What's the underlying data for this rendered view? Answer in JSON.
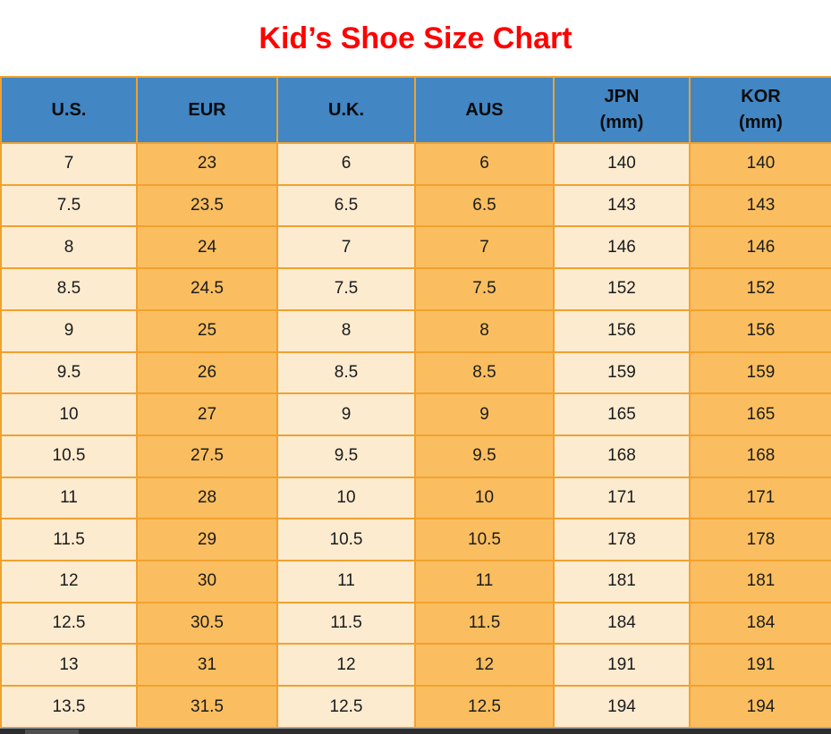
{
  "title": "Kid’s Shoe Size Chart",
  "colors": {
    "header_bg": "#4286C4",
    "column_light": "#FDEBD0",
    "column_orange": "#FABE60",
    "grid_border": "#F1A12F",
    "title_red": "#FE0000",
    "cell_text": "#1B1B1B",
    "bottom_bar": "#2D2D2D",
    "bottom_bar_thumb": "#4F4F4F"
  },
  "table": {
    "columns": [
      {
        "key": "us",
        "label": "U.S.",
        "sub": "",
        "bg": "light"
      },
      {
        "key": "eur",
        "label": "EUR",
        "sub": "",
        "bg": "orange"
      },
      {
        "key": "uk",
        "label": "U.K.",
        "sub": "",
        "bg": "light"
      },
      {
        "key": "aus",
        "label": "AUS",
        "sub": "",
        "bg": "orange"
      },
      {
        "key": "jpn",
        "label": "JPN",
        "sub": "(mm)",
        "bg": "light"
      },
      {
        "key": "kor",
        "label": "KOR",
        "sub": "(mm)",
        "bg": "orange"
      }
    ],
    "rows": [
      [
        "7",
        "23",
        "6",
        "6",
        "140",
        "140"
      ],
      [
        "7.5",
        "23.5",
        "6.5",
        "6.5",
        "143",
        "143"
      ],
      [
        "8",
        "24",
        "7",
        "7",
        "146",
        "146"
      ],
      [
        "8.5",
        "24.5",
        "7.5",
        "7.5",
        "152",
        "152"
      ],
      [
        "9",
        "25",
        "8",
        "8",
        "156",
        "156"
      ],
      [
        "9.5",
        "26",
        "8.5",
        "8.5",
        "159",
        "159"
      ],
      [
        "10",
        "27",
        "9",
        "9",
        "165",
        "165"
      ],
      [
        "10.5",
        "27.5",
        "9.5",
        "9.5",
        "168",
        "168"
      ],
      [
        "11",
        "28",
        "10",
        "10",
        "171",
        "171"
      ],
      [
        "11.5",
        "29",
        "10.5",
        "10.5",
        "178",
        "178"
      ],
      [
        "12",
        "30",
        "11",
        "11",
        "181",
        "181"
      ],
      [
        "12.5",
        "30.5",
        "11.5",
        "11.5",
        "184",
        "184"
      ],
      [
        "13",
        "31",
        "12",
        "12",
        "191",
        "191"
      ],
      [
        "13.5",
        "31.5",
        "12.5",
        "12.5",
        "194",
        "194"
      ]
    ]
  },
  "chart_data": {
    "type": "table",
    "title": "Kid’s Shoe Size Chart",
    "columns": [
      "U.S.",
      "EUR",
      "U.K.",
      "AUS",
      "JPN (mm)",
      "KOR (mm)"
    ],
    "rows": [
      [
        7,
        23,
        6,
        6,
        140,
        140
      ],
      [
        7.5,
        23.5,
        6.5,
        6.5,
        143,
        143
      ],
      [
        8,
        24,
        7,
        7,
        146,
        146
      ],
      [
        8.5,
        24.5,
        7.5,
        7.5,
        152,
        152
      ],
      [
        9,
        25,
        8,
        8,
        156,
        156
      ],
      [
        9.5,
        26,
        8.5,
        8.5,
        159,
        159
      ],
      [
        10,
        27,
        9,
        9,
        165,
        165
      ],
      [
        10.5,
        27.5,
        9.5,
        9.5,
        168,
        168
      ],
      [
        11,
        28,
        10,
        10,
        171,
        171
      ],
      [
        11.5,
        29,
        10.5,
        10.5,
        178,
        178
      ],
      [
        12,
        30,
        11,
        11,
        181,
        181
      ],
      [
        12.5,
        30.5,
        11.5,
        11.5,
        184,
        184
      ],
      [
        13,
        31,
        12,
        12,
        191,
        191
      ],
      [
        13.5,
        31.5,
        12.5,
        12.5,
        194,
        194
      ]
    ],
    "layout_hints": {
      "header_fill": "#4286C4",
      "alternating_column_fills": [
        "#FDEBD0",
        "#FABE60"
      ],
      "grid": "on",
      "grid_color": "#F1A12F"
    }
  }
}
